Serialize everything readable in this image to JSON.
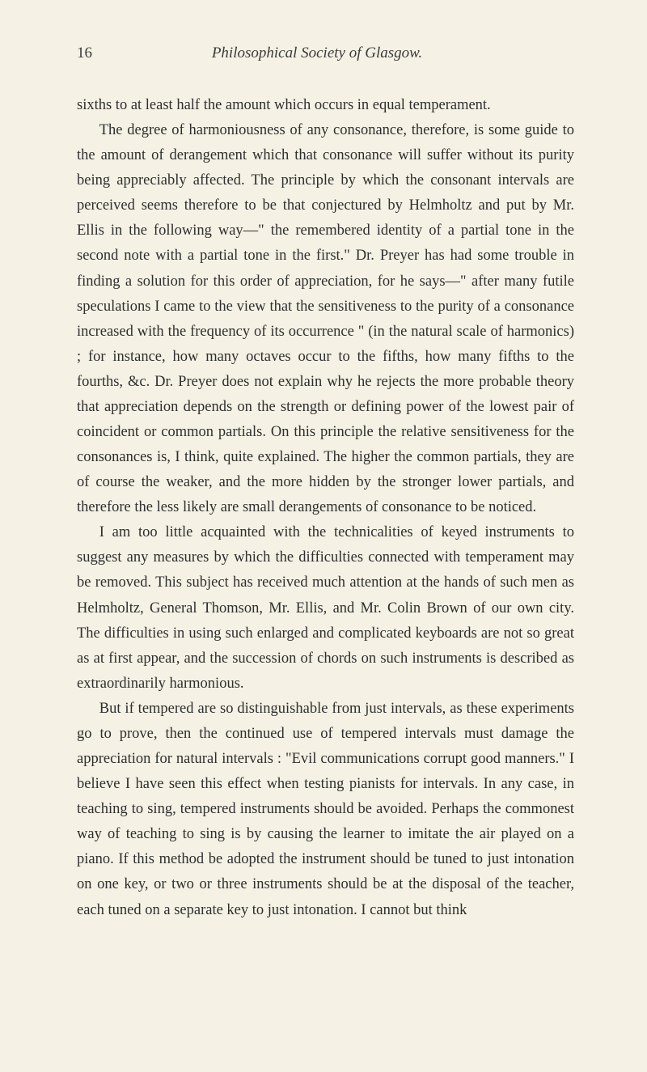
{
  "page": {
    "number": "16",
    "title": "Philosophical Society of Glasgow."
  },
  "paragraphs": {
    "p1": "sixths to at least half the amount which occurs in equal temperament.",
    "p2": "The degree of harmoniousness of any consonance, therefore, is some guide to the amount of derangement which that consonance will suffer without its purity being appreciably affected. The principle by which the consonant intervals are perceived seems therefore to be that conjectured by Helmholtz and put by Mr. Ellis in the following way—\" the remembered identity of a partial tone in the second note with a partial tone in the first.\" Dr. Preyer has had some trouble in finding a solution for this order of appreciation, for he says—\" after many futile speculations I came to the view that the sensitiveness to the purity of a consonance increased with the frequency of its occurrence \" (in the natural scale of harmonics) ; for instance, how many octaves occur to the fifths, how many fifths to the fourths, &c. Dr. Preyer does not explain why he rejects the more probable theory that appreciation depends on the strength or defining power of the lowest pair of coincident or common partials. On this principle the relative sensitiveness for the consonances is, I think, quite explained. The higher the common partials, they are of course the weaker, and the more hidden by the stronger lower partials, and therefore the less likely are small derangements of consonance to be noticed.",
    "p3": "I am too little acquainted with the technicalities of keyed instruments to suggest any measures by which the difficulties connected with temperament may be removed. This subject has received much attention at the hands of such men as Helmholtz, General Thomson, Mr. Ellis, and Mr. Colin Brown of our own city. The difficulties in using such enlarged and complicated keyboards are not so great as at first appear, and the succession of chords on such instruments is described as extraordinarily harmonious.",
    "p4": "But if tempered are so distinguishable from just intervals, as these experiments go to prove, then the continued use of tempered intervals must damage the appreciation for natural intervals : \"Evil communications corrupt good manners.\" I believe I have seen this effect when testing pianists for intervals. In any case, in teaching to sing, tempered instruments should be avoided. Perhaps the commonest way of teaching to sing is by causing the learner to imitate the air played on a piano. If this method be adopted the instrument should be tuned to just intonation on one key, or two or three instruments should be at the disposal of the teacher, each tuned on a separate key to just intonation. I cannot but think"
  }
}
